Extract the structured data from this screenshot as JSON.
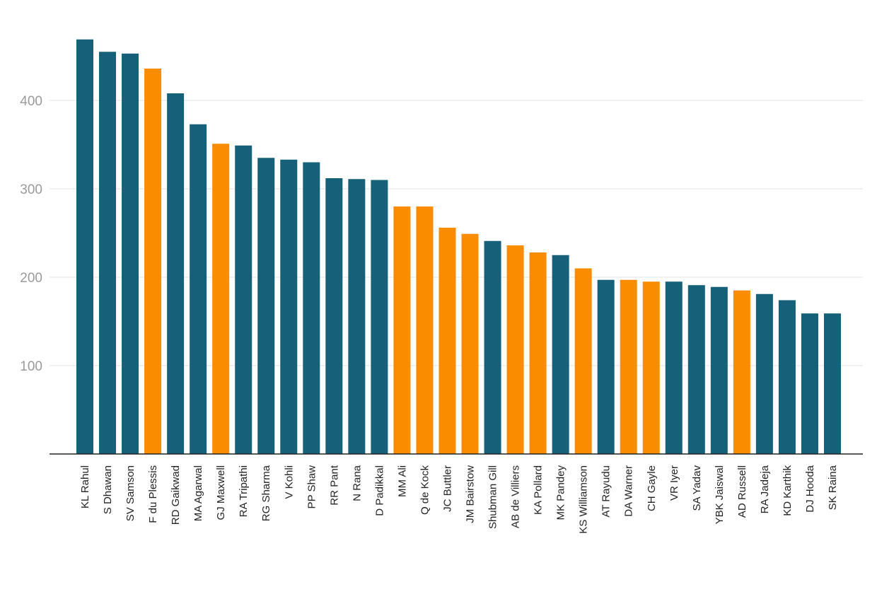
{
  "chart_data": {
    "type": "bar",
    "categories": [
      "KL Rahul",
      "S Dhawan",
      "SV Samson",
      "F du Plessis",
      "RD Gaikwad",
      "MA Agarwal",
      "GJ Maxwell",
      "RA Tripathi",
      "RG Sharma",
      "V Kohli",
      "PP Shaw",
      "RR Pant",
      "N Rana",
      "D Padikkal",
      "MM Ali",
      "Q de Kock",
      "JC Buttler",
      "JM Bairstow",
      "Shubman Gill",
      "AB de Villiers",
      "KA Pollard",
      "MK Pandey",
      "KS Williamson",
      "AT Rayudu",
      "DA Warner",
      "CH Gayle",
      "VR Iyer",
      "SA Yadav",
      "YBK Jaiswal",
      "AD Russell",
      "RA Jadeja",
      "KD Karthik",
      "DJ Hooda",
      "SK Raina"
    ],
    "values": [
      469,
      455,
      453,
      436,
      408,
      373,
      351,
      349,
      335,
      333,
      330,
      312,
      311,
      310,
      280,
      280,
      256,
      249,
      241,
      236,
      228,
      225,
      210,
      197,
      197,
      195,
      195,
      191,
      189,
      185,
      181,
      174,
      159,
      159
    ],
    "highlight": [
      false,
      false,
      false,
      true,
      false,
      false,
      true,
      false,
      false,
      false,
      false,
      false,
      false,
      false,
      true,
      true,
      true,
      true,
      false,
      true,
      true,
      false,
      true,
      false,
      true,
      true,
      false,
      false,
      false,
      true,
      false,
      false,
      false,
      false
    ],
    "colors": {
      "default": "#17607a",
      "highlight": "#fa8c00"
    },
    "yticks": [
      100,
      200,
      300,
      400
    ],
    "ylim": [
      0,
      500
    ],
    "title": "",
    "xlabel": "",
    "ylabel": "",
    "grid": true
  }
}
